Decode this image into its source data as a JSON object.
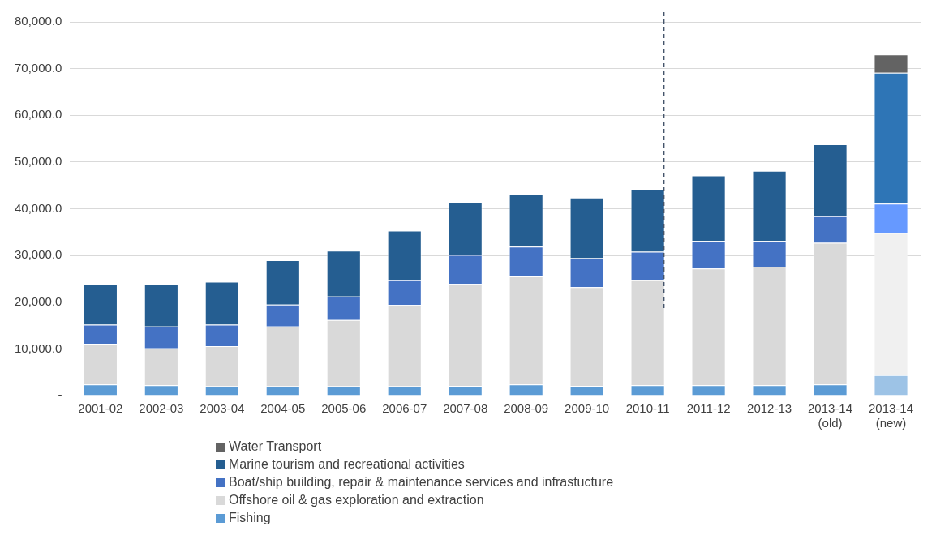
{
  "chart_data": {
    "type": "bar",
    "stacked": true,
    "categories": [
      "2001-02",
      "2002-03",
      "2003-04",
      "2004-05",
      "2005-06",
      "2006-07",
      "2007-08",
      "2008-09",
      "2009-10",
      "2010-11",
      "2011-12",
      "2012-13",
      "2013-14 (old)",
      "2013-14 (new)"
    ],
    "series": [
      {
        "name": "Fishing",
        "color": "#5b9bd5",
        "colors": [
          "#5b9bd5",
          "#5b9bd5",
          "#5b9bd5",
          "#5b9bd5",
          "#5b9bd5",
          "#5b9bd5",
          "#5b9bd5",
          "#5b9bd5",
          "#5b9bd5",
          "#5b9bd5",
          "#5b9bd5",
          "#5b9bd5",
          "#5b9bd5",
          "#9dc3e6"
        ],
        "values": [
          2400,
          2200,
          2000,
          2000,
          2000,
          2000,
          2100,
          2400,
          2100,
          2200,
          2200,
          2200,
          2400,
          4400
        ]
      },
      {
        "name": "Offshore oil & gas exploration and extraction",
        "color": "#d9d9d9",
        "colors": [
          "#d9d9d9",
          "#d9d9d9",
          "#d9d9d9",
          "#d9d9d9",
          "#d9d9d9",
          "#d9d9d9",
          "#d9d9d9",
          "#d9d9d9",
          "#d9d9d9",
          "#d9d9d9",
          "#d9d9d9",
          "#d9d9d9",
          "#d9d9d9",
          "#f0f0f0"
        ],
        "values": [
          8700,
          7900,
          8600,
          12800,
          14200,
          17400,
          21800,
          23100,
          21100,
          22500,
          25000,
          25400,
          30300,
          30400
        ]
      },
      {
        "name": "Boat/ship building, repair & maintenance services and infrastucture",
        "color": "#4472c4",
        "colors": [
          "#4472c4",
          "#4472c4",
          "#4472c4",
          "#4472c4",
          "#4472c4",
          "#4472c4",
          "#4472c4",
          "#4472c4",
          "#4472c4",
          "#4472c4",
          "#4472c4",
          "#4472c4",
          "#4472c4",
          "#6699ff"
        ],
        "values": [
          4100,
          4700,
          4600,
          4700,
          5000,
          5300,
          6200,
          6400,
          6200,
          6100,
          5900,
          5500,
          5700,
          6300
        ]
      },
      {
        "name": "Marine tourism and recreational activities",
        "color": "#255e91",
        "colors": [
          "#255e91",
          "#255e91",
          "#255e91",
          "#255e91",
          "#255e91",
          "#255e91",
          "#255e91",
          "#255e91",
          "#255e91",
          "#255e91",
          "#255e91",
          "#255e91",
          "#255e91",
          "#2e75b6"
        ],
        "values": [
          8600,
          9100,
          9200,
          9500,
          9800,
          10600,
          11300,
          11200,
          13000,
          13300,
          14000,
          15000,
          15400,
          28000
        ]
      },
      {
        "name": "Water Transport",
        "color": "#636363",
        "values": [
          null,
          null,
          null,
          null,
          null,
          null,
          null,
          null,
          null,
          null,
          null,
          null,
          null,
          3900
        ]
      }
    ],
    "ylim": [
      0,
      80000
    ],
    "yticks": [
      {
        "value": 0,
        "label": "-"
      },
      {
        "value": 10000,
        "label": "10,000.0"
      },
      {
        "value": 20000,
        "label": "20,000.0"
      },
      {
        "value": 30000,
        "label": "30,000.0"
      },
      {
        "value": 40000,
        "label": "40,000.0"
      },
      {
        "value": 50000,
        "label": "50,000.0"
      },
      {
        "value": 60000,
        "label": "60,000.0"
      },
      {
        "value": 70000,
        "label": "70,000.0"
      },
      {
        "value": 80000,
        "label": "80,000.0"
      }
    ],
    "ref_lines": [
      {
        "axis": "x",
        "value": "2010-11",
        "color": "#44546a",
        "line_style": "dashed"
      }
    ],
    "grid": "y",
    "legend": "bottom"
  }
}
